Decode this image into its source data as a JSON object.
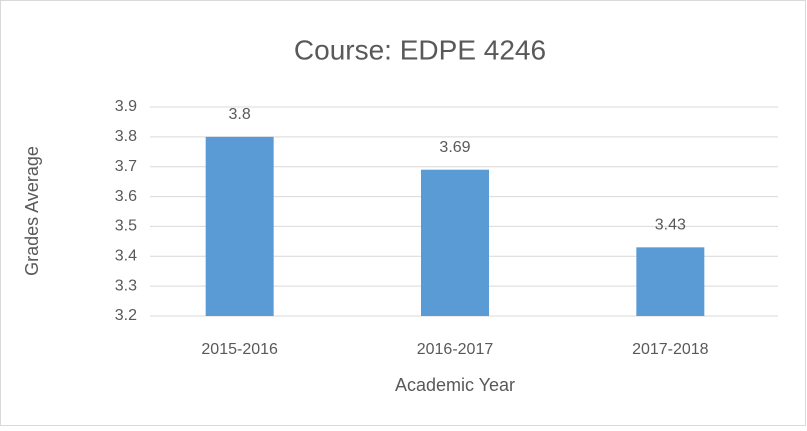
{
  "chart_data": {
    "type": "bar",
    "title": "Course: EDPE 4246",
    "x_label": "Academic Year",
    "y_label": "Grades Average",
    "categories": [
      "2015-2016",
      "2016-2017",
      "2017-2018"
    ],
    "values": [
      3.8,
      3.69,
      3.43
    ],
    "color": "#5b9bd5",
    "ylim": [
      3.2,
      3.9
    ],
    "yticks": [
      3.2,
      3.3,
      3.4,
      3.5,
      3.6,
      3.7,
      3.8,
      3.9
    ],
    "grid": true
  }
}
